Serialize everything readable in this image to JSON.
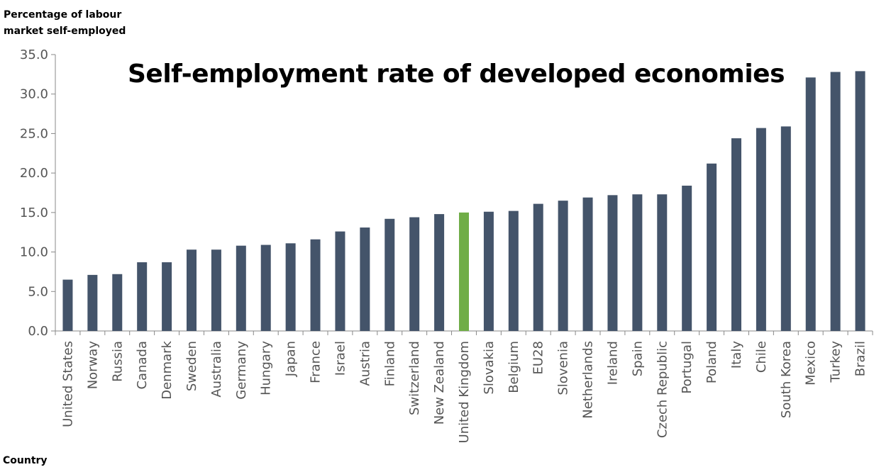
{
  "chart_data": {
    "type": "bar",
    "title": "Self-employment rate of developed economies",
    "ylabel": "Percentage of labour\nmarket self-employed",
    "xlabel": "Country",
    "ylim": [
      0,
      35
    ],
    "yticks": [
      "0.0",
      "5.0",
      "10.0",
      "15.0",
      "20.0",
      "25.0",
      "30.0",
      "35.0"
    ],
    "grid": false,
    "categories": [
      "United States",
      "Norway",
      "Russia",
      "Canada",
      "Denmark",
      "Sweden",
      "Australia",
      "Germany",
      "Hungary",
      "Japan",
      "France",
      "Israel",
      "Austria",
      "Finland",
      "Switzerland",
      "New Zealand",
      "United Kingdom",
      "Slovakia",
      "Belgium",
      "EU28",
      "Slovenia",
      "Netherlands",
      "Ireland",
      "Spain",
      "Czech Republic",
      "Portugal",
      "Poland",
      "Italy",
      "Chile",
      "South Korea",
      "Mexico",
      "Turkey",
      "Brazil"
    ],
    "values": [
      6.5,
      7.1,
      7.2,
      8.7,
      8.7,
      10.3,
      10.3,
      10.8,
      10.9,
      11.1,
      11.6,
      12.6,
      13.1,
      14.2,
      14.4,
      14.8,
      15.0,
      15.1,
      15.2,
      16.1,
      16.5,
      16.9,
      17.2,
      17.3,
      17.3,
      18.4,
      21.2,
      24.4,
      25.7,
      25.9,
      32.1,
      32.8,
      32.9
    ],
    "colors": {
      "default": "#44546a",
      "highlight": "#70ad47"
    },
    "highlight": "United Kingdom"
  }
}
